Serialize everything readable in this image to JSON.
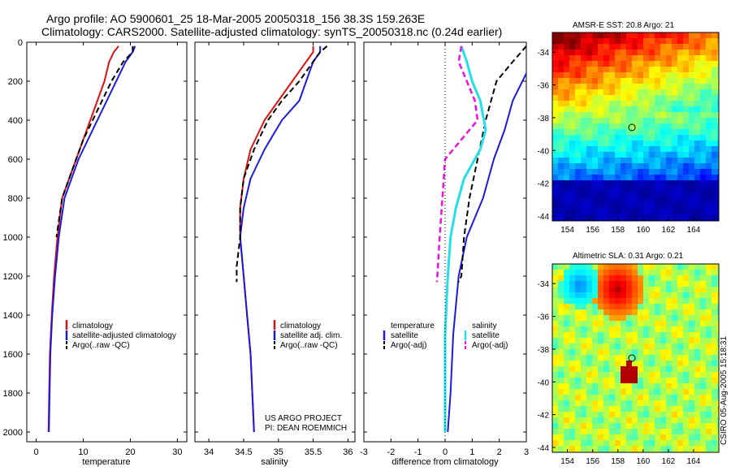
{
  "header": {
    "line1": "Argo profile: AO 5900601_25 18-Mar-2005 20050318_156 38.3S 159.263E",
    "line2": "Climatology: CARS2000. Satellite-adjusted climatology: synTS_20050318.nc (0.24d earlier)"
  },
  "credit": {
    "project": "US ARGO PROJECT",
    "pi": "PI: DEAN ROEMMICH",
    "stamp": "CSIRO 05-Aug-2005 15:18:31"
  },
  "colors": {
    "climatology": "#dd1111",
    "satellite": "#1a1adf",
    "argo": "#000000",
    "temp_satellite_diff": "#22e0e8",
    "sal_argo_diff": "#ee11dd"
  },
  "chart_data": [
    {
      "type": "line",
      "title": "",
      "xlabel": "temperature",
      "ylabel": "",
      "xlim": [
        -2,
        32
      ],
      "ylim": [
        2050,
        0
      ],
      "xticks": [
        0,
        10,
        20,
        30
      ],
      "yticks": [
        0,
        200,
        400,
        600,
        800,
        1000,
        1200,
        1400,
        1600,
        1800,
        2000
      ],
      "legend": [
        "climatology",
        "satellite-adjusted climatology",
        "Argo(..raw -QC)"
      ],
      "series": [
        {
          "name": "climatology",
          "x": [
            17.5,
            16.5,
            15.5,
            14.5,
            13,
            11.5,
            10,
            8.5,
            7,
            5.5,
            4.5,
            3.8,
            3.3,
            2.9,
            2.6
          ],
          "y": [
            20,
            50,
            100,
            200,
            300,
            400,
            500,
            600,
            700,
            800,
            1000,
            1200,
            1400,
            1600,
            2000
          ]
        },
        {
          "name": "satellite-adjusted climatology",
          "x": [
            21,
            20.5,
            19,
            17,
            15,
            13,
            11,
            9,
            7.5,
            6,
            4.8,
            4,
            3.4,
            3,
            2.7
          ],
          "y": [
            20,
            50,
            100,
            200,
            300,
            400,
            500,
            600,
            700,
            800,
            1000,
            1200,
            1400,
            1600,
            2000
          ]
        },
        {
          "name": "Argo(..raw -QC)",
          "x": [
            20.5,
            20.5,
            18.5,
            16,
            14,
            12,
            10,
            8.5,
            7,
            5.5,
            4.3
          ],
          "y": [
            20,
            50,
            100,
            200,
            300,
            400,
            500,
            600,
            700,
            800,
            1000
          ]
        }
      ]
    },
    {
      "type": "line",
      "title": "",
      "xlabel": "salinity",
      "ylabel": "",
      "xlim": [
        33.8,
        36.1
      ],
      "ylim": [
        2050,
        0
      ],
      "xticks": [
        34,
        34.5,
        35,
        35.5,
        36
      ],
      "legend": [
        "climatology",
        "satellite adj. clim.",
        "Argo(..raw -QC)"
      ],
      "series": [
        {
          "name": "climatology",
          "x": [
            35.5,
            35.5,
            35.4,
            35.2,
            35,
            34.8,
            34.6,
            34.5,
            34.45,
            34.45,
            34.5,
            34.55,
            34.6,
            34.65
          ],
          "y": [
            20,
            50,
            100,
            200,
            300,
            400,
            550,
            700,
            850,
            1000,
            1200,
            1400,
            1600,
            2000
          ]
        },
        {
          "name": "satellite adj. clim.",
          "x": [
            35.6,
            35.6,
            35.5,
            35.4,
            35.3,
            35.05,
            34.8,
            34.6,
            34.5,
            34.45,
            34.5,
            34.55,
            34.6,
            34.65
          ],
          "y": [
            20,
            50,
            100,
            200,
            300,
            400,
            550,
            700,
            850,
            1000,
            1200,
            1400,
            1600,
            2000
          ]
        },
        {
          "name": "Argo(..raw -QC)",
          "x": [
            35.7,
            35.6,
            35.5,
            35.3,
            35.05,
            34.85,
            34.65,
            34.5,
            34.45,
            34.45,
            34.4,
            34.4
          ],
          "y": [
            20,
            50,
            100,
            200,
            300,
            400,
            550,
            700,
            850,
            1000,
            1150,
            1230
          ]
        }
      ]
    },
    {
      "type": "line",
      "title": "",
      "xlabel": "difference from climatology",
      "ylabel": "",
      "xlim": [
        -3,
        3
      ],
      "ylim": [
        2050,
        0
      ],
      "xticks": [
        -3,
        -2,
        -1,
        0,
        1,
        2,
        3
      ],
      "legend_left": {
        "title": "temperature",
        "items": [
          "satellite",
          "Argo(-adj)"
        ]
      },
      "legend_right": {
        "title": "salinity",
        "items": [
          "satellite",
          "Argo(-adj)"
        ]
      },
      "series": [
        {
          "name": "temperature satellite",
          "x": [
            3.5,
            2.5,
            2.2,
            1.8,
            1.4,
            0.8,
            0.5,
            0.3,
            0.2,
            0.1
          ],
          "y": [
            20,
            300,
            450,
            600,
            800,
            1000,
            1200,
            1500,
            1800,
            2000
          ]
        },
        {
          "name": "temperature Argo(-adj)",
          "x": [
            3,
            2.5,
            1.9,
            1.5,
            1.2,
            0.9,
            0.7,
            0.6,
            0.5
          ],
          "y": [
            20,
            100,
            200,
            400,
            600,
            800,
            1000,
            1200,
            1230
          ]
        },
        {
          "name": "salinity satellite",
          "x": [
            0.6,
            0.8,
            1.0,
            1.3,
            1.5,
            1.3,
            0.7,
            0.4,
            0.2,
            0.1,
            0.0,
            0.0
          ],
          "y": [
            20,
            100,
            200,
            300,
            450,
            550,
            700,
            850,
            1000,
            1200,
            1500,
            2000
          ]
        },
        {
          "name": "salinity Argo(-adj)",
          "x": [
            0.6,
            0.5,
            0.8,
            1.1,
            1.2,
            0.6,
            0.0,
            -0.1,
            -0.2,
            -0.3
          ],
          "y": [
            20,
            100,
            200,
            300,
            400,
            500,
            600,
            800,
            1000,
            1230
          ]
        }
      ]
    },
    {
      "type": "heatmap",
      "title": "AMSR-E SST: 20.8 Argo: 21",
      "xticks": [
        154,
        156,
        158,
        160,
        162,
        164
      ],
      "yticks": [
        -34,
        -36,
        -38,
        -40,
        -42,
        -44
      ],
      "xlim": [
        152.8,
        166
      ],
      "ylim": [
        -44.3,
        -32.8
      ],
      "float_marker": {
        "x": 159.26,
        "y": -38.3
      }
    },
    {
      "type": "heatmap",
      "title": "Altimetric SLA: 0.31 Argo: 0.21",
      "xticks": [
        154,
        156,
        158,
        160,
        162,
        164
      ],
      "yticks": [
        -34,
        -36,
        -38,
        -40,
        -42,
        -44
      ],
      "xlim": [
        152.8,
        166
      ],
      "ylim": [
        -44.3,
        -32.8
      ],
      "float_marker": {
        "x": 159.26,
        "y": -38.3
      }
    }
  ]
}
